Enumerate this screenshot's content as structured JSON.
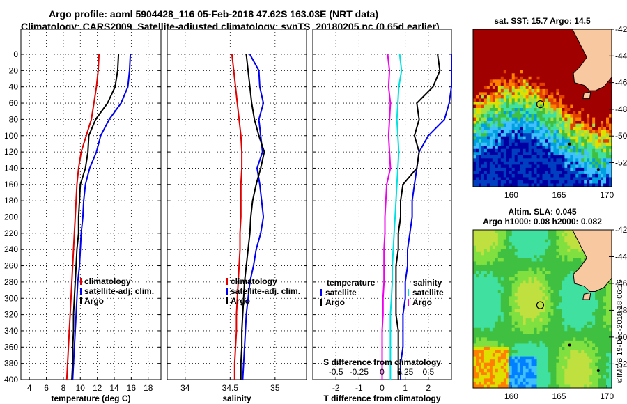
{
  "title_line1": "Argo profile: aoml 5904428_116 05-Feb-2018 47.62S 163.03E (NRT data)",
  "title_line2": "Climatology: CARS2009. Satellite-adjusted climatology: synTS_20180205.nc (0.65d earlier)",
  "side_stamp": "©IMOS 19-Dec-2018 18:06:16",
  "colors": {
    "climatology": "#e00000",
    "satellite": "#0000ee",
    "argo": "#000000",
    "sdiff_sat": "#00e0e0",
    "sdiff_clim": "#ee00ee"
  },
  "chart_data": [
    {
      "id": "temperature",
      "type": "line",
      "xlabel": "temperature (deg C)",
      "ylabel": "",
      "xlim": [
        3,
        19.5
      ],
      "ylim": [
        400,
        0
      ],
      "xticks": [
        4,
        6,
        8,
        10,
        12,
        14,
        16,
        18
      ],
      "yticks": [
        0,
        20,
        40,
        60,
        80,
        100,
        120,
        140,
        160,
        180,
        200,
        220,
        240,
        260,
        280,
        300,
        320,
        340,
        360,
        380,
        400
      ],
      "legend": [
        "climatology",
        "satellite-adj. clim.",
        "Argo"
      ],
      "series": [
        {
          "name": "climatology",
          "color": "#e00000",
          "x": [
            12.2,
            12.1,
            11.9,
            11.6,
            11.3,
            10.7,
            10.1,
            9.8,
            9.6,
            9.5,
            9.4,
            9.3,
            9.2,
            9.1,
            9.0,
            8.9,
            8.8,
            8.7,
            8.6,
            8.5,
            8.4
          ],
          "y": [
            0,
            20,
            40,
            60,
            80,
            100,
            120,
            140,
            160,
            180,
            200,
            220,
            240,
            260,
            280,
            300,
            320,
            340,
            360,
            380,
            400
          ]
        },
        {
          "name": "satellite-adj. clim.",
          "color": "#0000ee",
          "x": [
            15.9,
            15.8,
            15.6,
            14.8,
            13.4,
            12.4,
            11.9,
            11.1,
            10.6,
            10.4,
            10.3,
            10.1,
            10.0,
            9.9,
            9.7,
            9.6,
            9.5,
            9.4,
            9.3,
            9.2,
            9.1
          ],
          "y": [
            0,
            20,
            40,
            60,
            80,
            100,
            120,
            140,
            160,
            180,
            200,
            220,
            240,
            260,
            280,
            300,
            320,
            340,
            360,
            380,
            400
          ]
        },
        {
          "name": "Argo",
          "color": "#000000",
          "x": [
            14.5,
            14.4,
            14.1,
            13.2,
            11.8,
            11.0,
            10.9,
            10.6,
            10.0,
            9.9,
            9.8,
            9.8,
            9.6,
            9.5,
            9.4,
            9.3,
            9.2,
            9.2,
            9.1,
            9.1,
            9.0
          ],
          "y": [
            0,
            20,
            40,
            60,
            80,
            100,
            120,
            140,
            160,
            180,
            200,
            220,
            240,
            260,
            280,
            300,
            320,
            340,
            360,
            380,
            400
          ]
        }
      ]
    },
    {
      "id": "salinity",
      "type": "line",
      "xlabel": "salinity",
      "xlim": [
        33.8,
        35.35
      ],
      "ylim": [
        400,
        0
      ],
      "xticks": [
        34,
        34.5,
        35
      ],
      "xticklabels": [
        "34",
        "34.5",
        "35"
      ],
      "legend": [
        "climatology",
        "satellite-adj. clim.",
        "Argo"
      ],
      "series": [
        {
          "name": "climatology",
          "color": "#e00000",
          "x": [
            34.52,
            34.54,
            34.56,
            34.58,
            34.6,
            34.62,
            34.63,
            34.63,
            34.62,
            34.62,
            34.62,
            34.61,
            34.61,
            34.6,
            34.59,
            34.58,
            34.57,
            34.57,
            34.56,
            34.55,
            34.55
          ],
          "y": [
            0,
            20,
            40,
            60,
            80,
            100,
            120,
            140,
            160,
            180,
            200,
            220,
            240,
            260,
            280,
            300,
            320,
            340,
            360,
            380,
            400
          ]
        },
        {
          "name": "satellite-adj. clim.",
          "color": "#0000ee",
          "x": [
            34.72,
            34.82,
            34.83,
            34.87,
            34.82,
            34.84,
            34.86,
            34.8,
            34.83,
            34.85,
            34.87,
            34.84,
            34.79,
            34.76,
            34.72,
            34.7,
            34.68,
            34.67,
            34.66,
            34.65,
            34.64
          ],
          "y": [
            0,
            20,
            40,
            60,
            80,
            100,
            120,
            140,
            160,
            180,
            200,
            220,
            240,
            260,
            280,
            300,
            320,
            340,
            360,
            380,
            400
          ]
        },
        {
          "name": "Argo",
          "color": "#000000",
          "x": [
            34.68,
            34.7,
            34.72,
            34.74,
            34.77,
            34.82,
            34.88,
            34.84,
            34.79,
            34.75,
            34.73,
            34.72,
            34.7,
            34.68,
            34.66,
            34.65,
            34.64,
            34.63,
            34.63,
            34.62,
            34.62
          ],
          "y": [
            0,
            20,
            40,
            60,
            80,
            100,
            120,
            140,
            160,
            180,
            200,
            220,
            240,
            260,
            280,
            300,
            320,
            340,
            360,
            380,
            400
          ]
        }
      ]
    },
    {
      "id": "difference",
      "type": "line",
      "xlabel": "T difference from climatology",
      "xlabel_top": "S difference from climatology",
      "xlim": [
        -3,
        3
      ],
      "xlim_top": [
        -0.75,
        0.75
      ],
      "ylim": [
        400,
        0
      ],
      "xticks": [
        -2,
        -1,
        0,
        1,
        2
      ],
      "xticks_top": [
        -0.5,
        -0.25,
        0,
        0.25,
        0.5
      ],
      "xticklabels_top": [
        "-0.5",
        "-0.25",
        "0",
        "0.25",
        "0.5"
      ],
      "legend_left_title": "temperature",
      "legend_right_title": "salinity",
      "legend_left": [
        "satellite",
        "Argo"
      ],
      "legend_right": [
        "satellite",
        "Argo"
      ],
      "series": [
        {
          "name": "T satellite",
          "color": "#0000ee",
          "x": [
            3.0,
            3.0,
            3.0,
            2.9,
            2.7,
            2.0,
            1.6,
            1.5,
            1.4,
            1.3,
            1.3,
            1.2,
            1.1,
            1.1,
            1.0,
            1.0,
            0.9,
            0.9,
            0.9,
            0.8,
            0.8
          ],
          "y": [
            0,
            20,
            40,
            60,
            80,
            100,
            120,
            140,
            160,
            180,
            200,
            220,
            240,
            260,
            280,
            300,
            320,
            340,
            360,
            380,
            400
          ]
        },
        {
          "name": "T Argo",
          "color": "#000000",
          "x": [
            2.4,
            2.5,
            2.2,
            1.5,
            1.6,
            1.4,
            1.6,
            1.5,
            0.9,
            0.8,
            0.8,
            0.7,
            0.7,
            0.6,
            0.6,
            0.6,
            0.6,
            0.7,
            0.7,
            0.7,
            0.7
          ],
          "y": [
            0,
            20,
            40,
            60,
            80,
            100,
            120,
            140,
            160,
            180,
            200,
            220,
            240,
            260,
            280,
            300,
            320,
            340,
            360,
            380,
            400
          ]
        },
        {
          "name": "S satellite",
          "color": "#00e0e0",
          "x": [
            0.19,
            0.21,
            0.18,
            0.17,
            0.16,
            0.17,
            0.18,
            0.17,
            0.16,
            0.15,
            0.14,
            0.13,
            0.12,
            0.11,
            0.11,
            0.1,
            0.09,
            0.09,
            0.09,
            0.09,
            0.09
          ],
          "y": [
            0,
            20,
            40,
            60,
            80,
            100,
            120,
            140,
            160,
            180,
            200,
            220,
            240,
            260,
            280,
            300,
            320,
            340,
            360,
            380,
            400
          ]
        },
        {
          "name": "S climatology",
          "color": "#ee00ee",
          "x": [
            0.06,
            0.08,
            0.07,
            0.09,
            0.08,
            0.07,
            0.08,
            0.09,
            0.05,
            0.04,
            0.03,
            0.03,
            0.02,
            0.02,
            0.02,
            0.01,
            0.01,
            0.0,
            0.0,
            0.0,
            0.0
          ],
          "y": [
            0,
            20,
            40,
            60,
            80,
            100,
            120,
            140,
            160,
            180,
            200,
            220,
            240,
            260,
            280,
            300,
            320,
            340,
            360,
            380,
            400
          ]
        }
      ]
    },
    {
      "id": "sst_map",
      "type": "heatmap",
      "title": "sat. SST: 15.7 Argo: 14.5",
      "xlim": [
        156,
        170.5
      ],
      "ylim": [
        -53.8,
        -42
      ],
      "xticks": [
        160,
        165,
        170
      ],
      "yticks": [
        -42,
        -44,
        -46,
        -48,
        -50,
        -52
      ],
      "float_lon": 163.03,
      "float_lat": -47.62
    },
    {
      "id": "sla_map",
      "type": "heatmap",
      "title_line1": "Altim. SLA: 0.045",
      "title_line2": "Argo h1000: 0.08 h2000: 0.082",
      "xlim": [
        156,
        170.5
      ],
      "ylim": [
        -53.8,
        -42
      ],
      "xticks": [
        160,
        165,
        170
      ],
      "yticks": [
        -42,
        -44,
        -46,
        -48,
        -50,
        -52
      ],
      "float_lon": 163.03,
      "float_lat": -47.62
    }
  ]
}
